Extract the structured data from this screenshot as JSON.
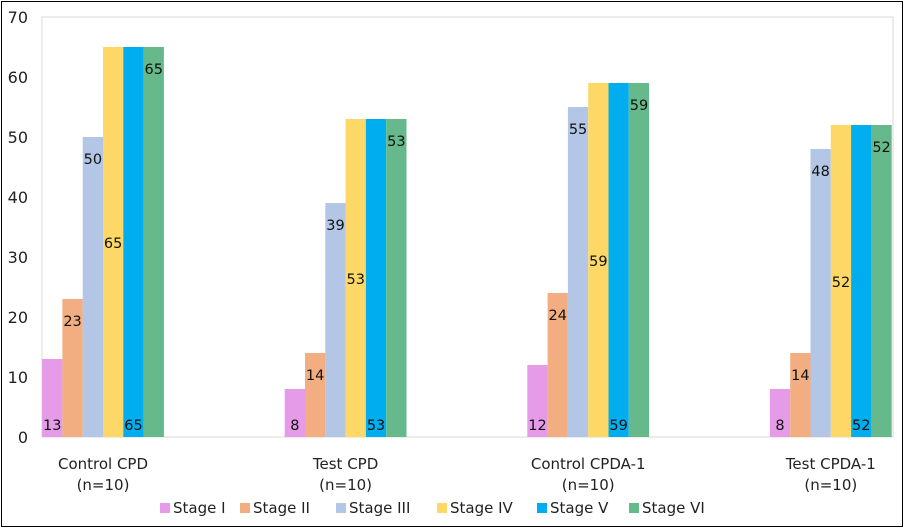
{
  "chart_data": {
    "type": "bar",
    "title": "",
    "xlabel": "",
    "ylabel": "",
    "ylim": [
      0,
      70
    ],
    "yticks": [
      0,
      10,
      20,
      30,
      40,
      50,
      60,
      70
    ],
    "grid": false,
    "legend_placement": "bottom",
    "categories": [
      [
        "Control CPD",
        "(n=10)"
      ],
      [
        "Test CPD",
        "(n=10)"
      ],
      [
        "Control CPDA-1",
        "(n=10)"
      ],
      [
        "Test CPDA-1",
        "(n=10)"
      ]
    ],
    "series": [
      {
        "name": "Stage I",
        "color": "#e59be8",
        "values": [
          13,
          8,
          12,
          8
        ]
      },
      {
        "name": "Stage II",
        "color": "#f2ae80",
        "values": [
          23,
          14,
          24,
          14
        ]
      },
      {
        "name": "Stage III",
        "color": "#b3c6e6",
        "values": [
          50,
          39,
          55,
          48
        ]
      },
      {
        "name": "Stage IV",
        "color": "#fdd866",
        "values": [
          65,
          53,
          59,
          52
        ]
      },
      {
        "name": "Stage V",
        "color": "#00aeef",
        "values": [
          65,
          53,
          59,
          52
        ]
      },
      {
        "name": "Stage VI",
        "color": "#66b98a",
        "values": [
          65,
          53,
          59,
          52
        ]
      }
    ]
  }
}
